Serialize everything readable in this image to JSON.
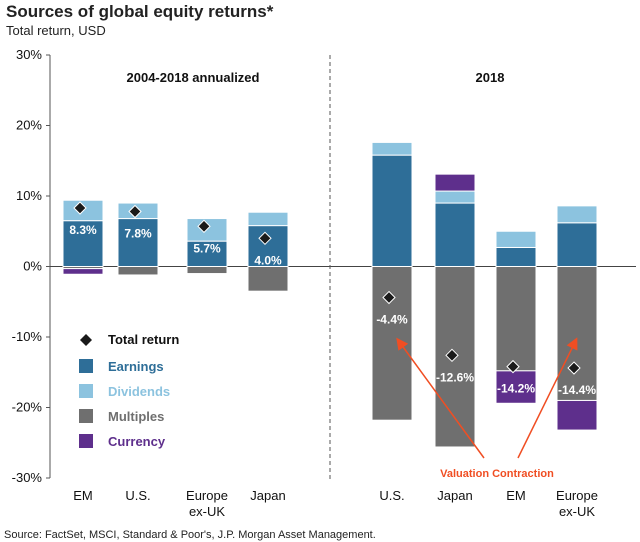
{
  "title": "Sources of global equity returns*",
  "subtitle": "Total return, USD",
  "source": "Source: FactSet, MSCI, Standard & Poor's, J.P. Morgan Asset Management.",
  "chart_data": {
    "type": "bar",
    "stacked": true,
    "ylim": [
      -30,
      30
    ],
    "yticks": [
      "30%",
      "20%",
      "10%",
      "0%",
      "-10%",
      "-20%",
      "-30%"
    ],
    "grid": false,
    "panels": [
      {
        "label": "2004-2018 annualized",
        "categories": [
          "EM",
          "U.S.",
          "Europe ex-UK",
          "Japan"
        ]
      },
      {
        "label": "2018",
        "categories": [
          "U.S.",
          "Japan",
          "EM",
          "Europe ex-UK"
        ]
      }
    ],
    "categories": [
      "EM",
      "U.S.",
      "Europe ex-UK",
      "Japan",
      "U.S.",
      "Japan",
      "EM",
      "Europe ex-UK"
    ],
    "series": [
      {
        "name": "Earnings",
        "color": "#2e6e98",
        "values": [
          6.5,
          6.8,
          3.6,
          5.8,
          15.8,
          9.0,
          2.7,
          6.2
        ]
      },
      {
        "name": "Dividends",
        "color": "#8cc3df",
        "values": [
          2.9,
          2.2,
          3.2,
          1.9,
          1.8,
          1.7,
          2.3,
          2.4
        ]
      },
      {
        "name": "Multiples",
        "color": "#6f6f6f",
        "values": [
          -0.3,
          -1.2,
          -1.0,
          -3.5,
          -21.8,
          -25.6,
          -14.8,
          -19.0
        ]
      },
      {
        "name": "Currency",
        "color": "#5e2f8c",
        "values": [
          -0.8,
          0,
          0,
          0,
          0,
          2.4,
          -4.6,
          -4.2
        ]
      }
    ],
    "total_return": {
      "name": "Total return",
      "values": [
        8.3,
        7.8,
        5.7,
        4.0,
        -4.4,
        -12.6,
        -14.2,
        -14.4
      ],
      "labels": [
        "8.3%",
        "7.8%",
        "5.7%",
        "4.0%",
        "-4.4%",
        "-12.6%",
        "-14.2%",
        "-14.4%"
      ]
    },
    "annotation": "Valuation Contraction",
    "annotation_color": "#f04e23"
  }
}
